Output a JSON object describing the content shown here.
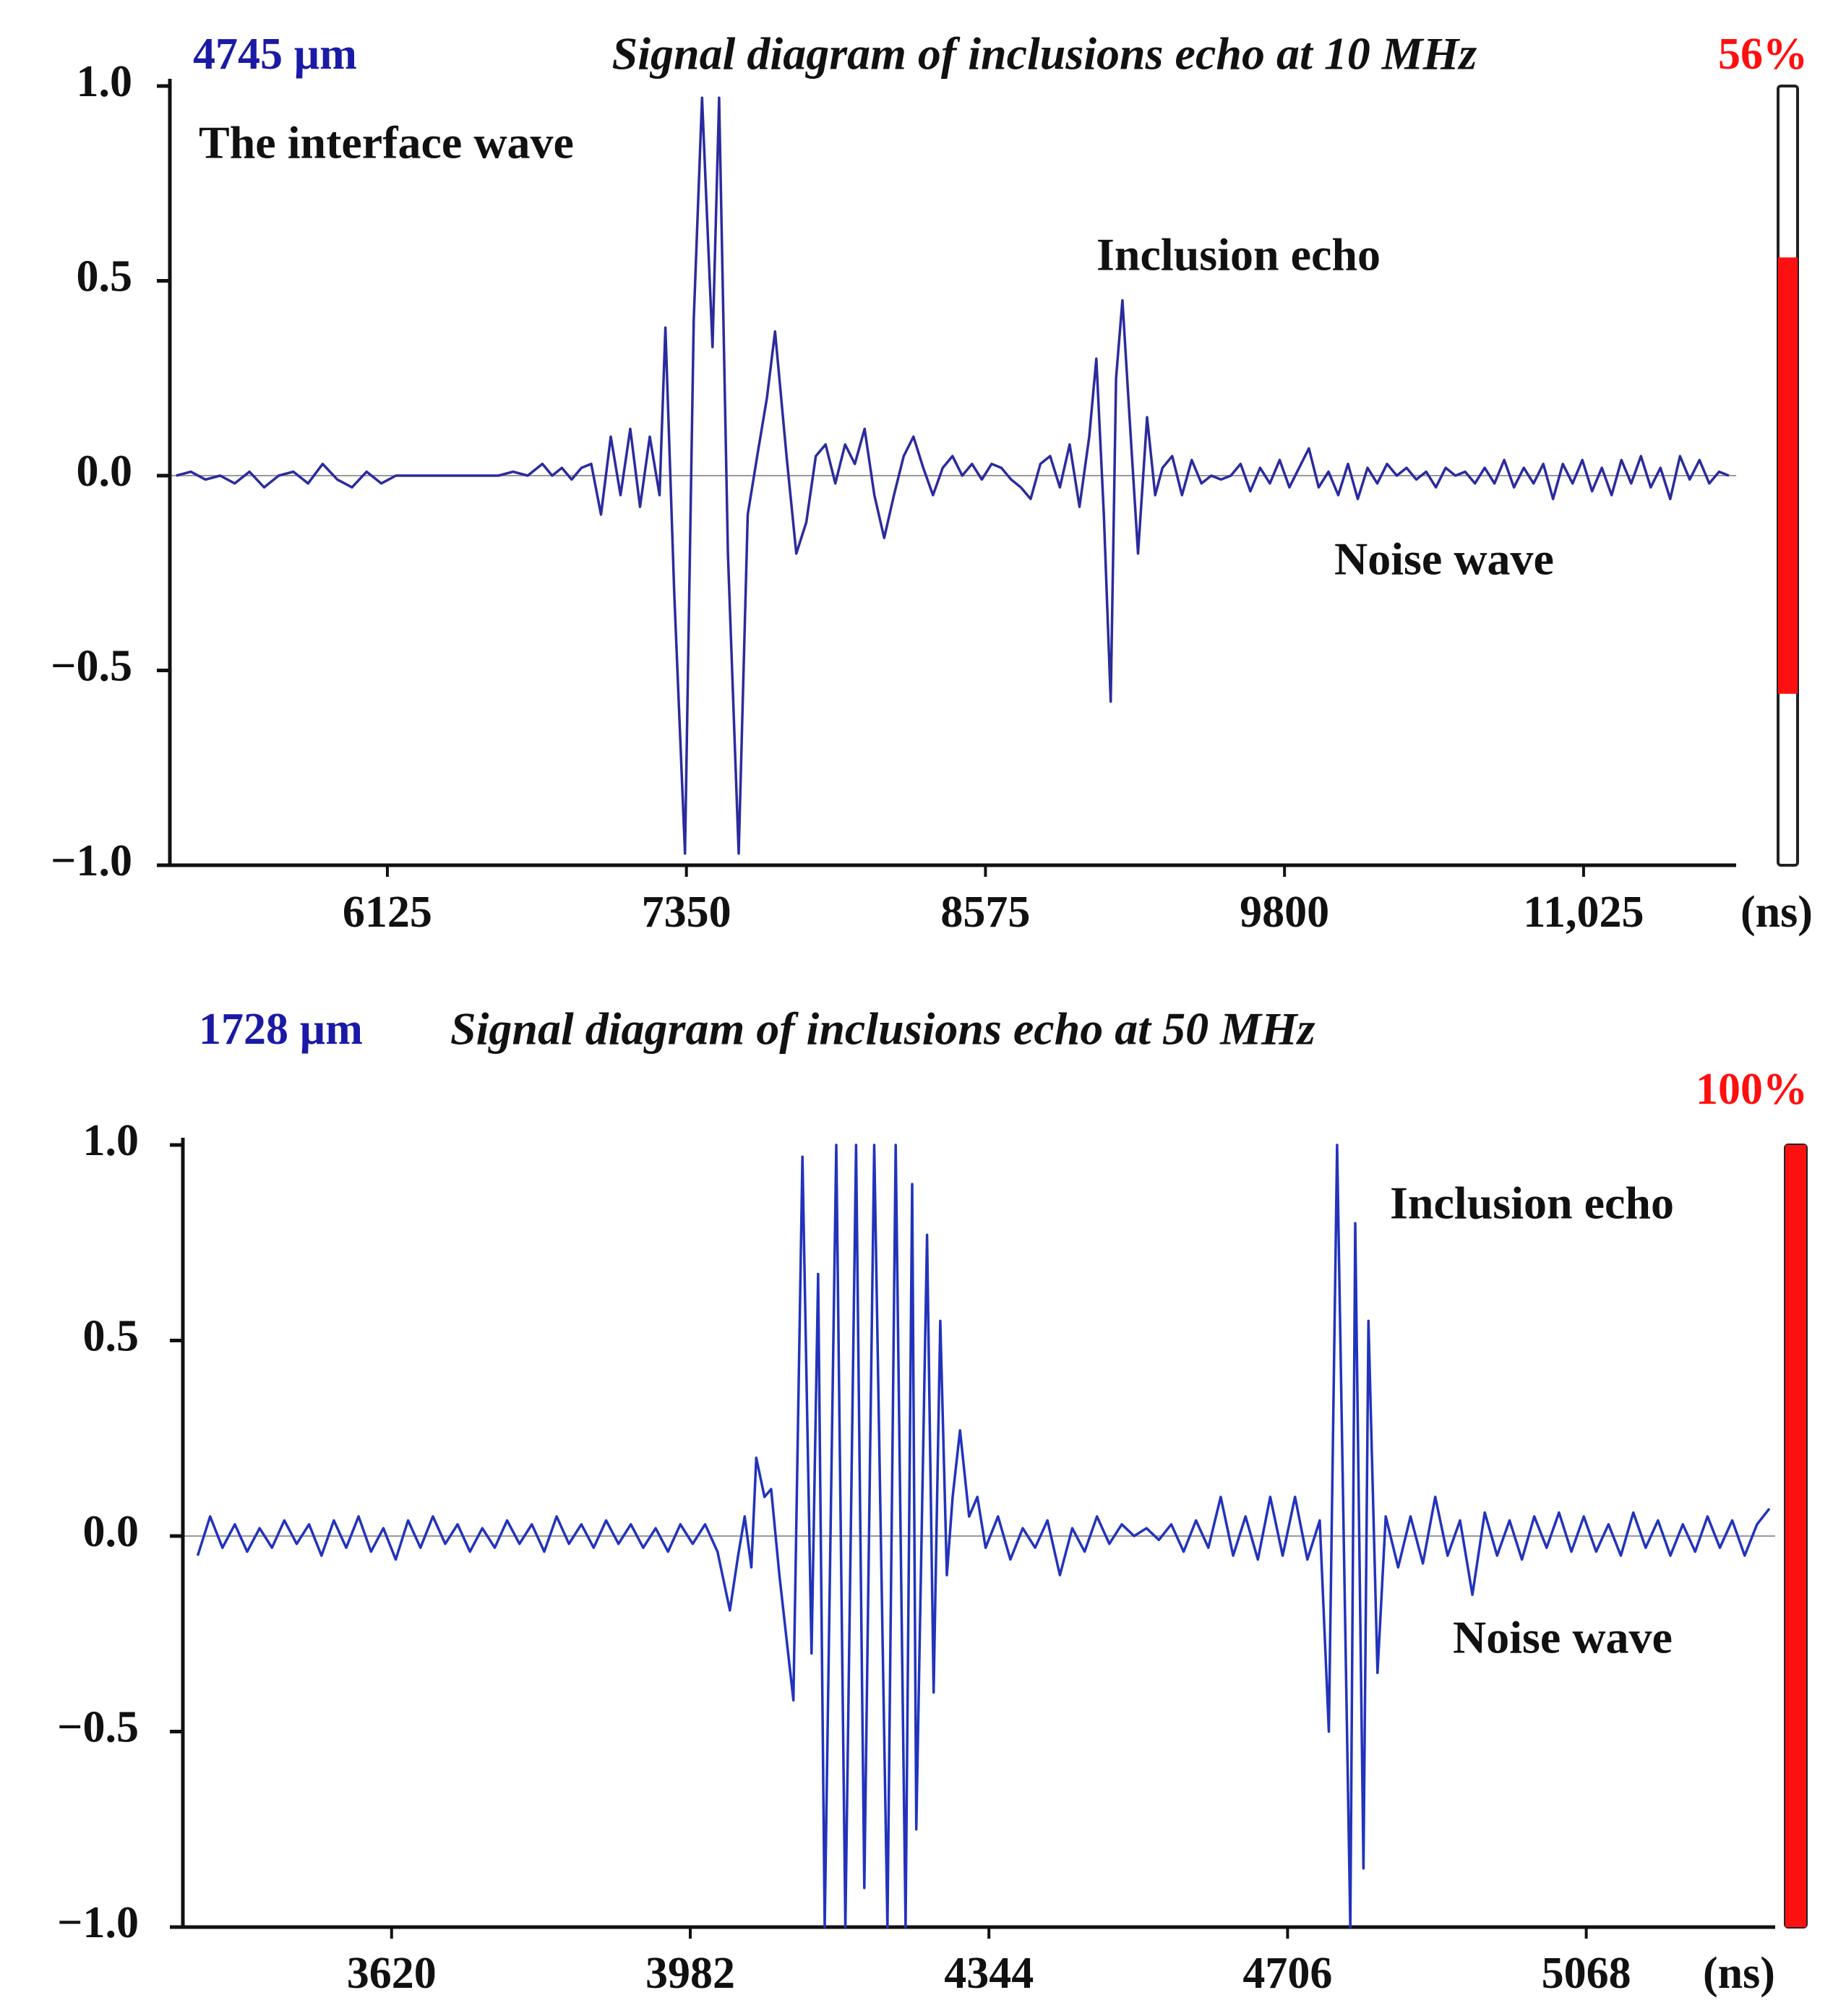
{
  "chart_data": [
    {
      "type": "line",
      "depth_label": "4745 µm",
      "title": "Signal diagram of inclusions echo at 10 MHz",
      "x_unit": "(ns)",
      "color": "#2b2b9e",
      "indicator": {
        "value": 56,
        "label": "56%",
        "color": "#ff1010"
      },
      "annotations": [
        "The interface wave",
        "Inclusion echo",
        "Noise wave"
      ],
      "xlim": [
        5234,
        11650
      ],
      "ylim": [
        -1,
        1
      ],
      "xticks": [
        6125,
        7350,
        8575,
        9800,
        {
          "value": 11025,
          "label": "11,025"
        }
      ],
      "yticks": [
        {
          "value": 1,
          "label": "1.0"
        },
        0.5,
        {
          "value": 0,
          "label": "0.0"
        },
        {
          "value": -0.5,
          "label": "−0.5"
        },
        {
          "value": -1,
          "label": "−1.0"
        }
      ],
      "x": [
        5260,
        5320,
        5380,
        5440,
        5500,
        5560,
        5620,
        5680,
        5740,
        5800,
        5860,
        5920,
        5980,
        6040,
        6100,
        6160,
        6220,
        6280,
        6340,
        6400,
        6460,
        6520,
        6580,
        6640,
        6700,
        6760,
        6800,
        6840,
        6880,
        6920,
        6960,
        7000,
        7040,
        7080,
        7120,
        7160,
        7200,
        7240,
        7264,
        7300,
        7344,
        7380,
        7414,
        7457,
        7484,
        7520,
        7564,
        7601,
        7640,
        7680,
        7713,
        7760,
        7800,
        7841,
        7880,
        7920,
        7960,
        8000,
        8040,
        8080,
        8120,
        8160,
        8200,
        8240,
        8280,
        8320,
        8360,
        8400,
        8440,
        8480,
        8520,
        8560,
        8600,
        8640,
        8680,
        8720,
        8760,
        8800,
        8840,
        8880,
        8920,
        8960,
        9000,
        9029,
        9060,
        9088,
        9110,
        9136,
        9170,
        9200,
        9237,
        9270,
        9300,
        9340,
        9380,
        9420,
        9460,
        9500,
        9540,
        9580,
        9620,
        9660,
        9700,
        9740,
        9780,
        9820,
        9860,
        9900,
        9940,
        9980,
        10020,
        10060,
        10100,
        10140,
        10180,
        10220,
        10260,
        10300,
        10340,
        10380,
        10420,
        10460,
        10500,
        10540,
        10580,
        10620,
        10660,
        10700,
        10740,
        10780,
        10820,
        10860,
        10900,
        10940,
        10980,
        11020,
        11060,
        11100,
        11140,
        11180,
        11220,
        11260,
        11300,
        11340,
        11380,
        11420,
        11460,
        11500,
        11540,
        11580,
        11620
      ],
      "values": [
        0,
        0.01,
        -0.01,
        0,
        -0.02,
        0.01,
        -0.03,
        0,
        0.01,
        -0.02,
        0.03,
        -0.01,
        -0.03,
        0.01,
        -0.02,
        0,
        0,
        0,
        0,
        0,
        0,
        0,
        0,
        0.01,
        0,
        0.03,
        0,
        0.02,
        -0.01,
        0.02,
        0.03,
        -0.1,
        0.1,
        -0.05,
        0.12,
        -0.08,
        0.1,
        -0.05,
        0.38,
        -0.3,
        -0.97,
        0.4,
        0.97,
        0.33,
        0.97,
        -0.2,
        -0.97,
        -0.1,
        0.05,
        0.2,
        0.37,
        0.05,
        -0.2,
        -0.12,
        0.05,
        0.08,
        -0.02,
        0.08,
        0.03,
        0.12,
        -0.05,
        -0.16,
        -0.05,
        0.05,
        0.1,
        0.02,
        -0.05,
        0.02,
        0.05,
        0,
        0.03,
        -0.01,
        0.03,
        0.02,
        -0.01,
        -0.03,
        -0.06,
        0.03,
        0.05,
        -0.03,
        0.08,
        -0.08,
        0.1,
        0.3,
        -0.1,
        -0.58,
        0.25,
        0.45,
        0.1,
        -0.2,
        0.15,
        -0.05,
        0.02,
        0.05,
        -0.05,
        0.04,
        -0.02,
        0,
        -0.01,
        0,
        0.03,
        -0.04,
        0.02,
        -0.02,
        0.04,
        -0.03,
        0.02,
        0.07,
        -0.03,
        0.01,
        -0.05,
        0.03,
        -0.06,
        0.02,
        -0.02,
        0.03,
        0,
        0.02,
        -0.01,
        0.01,
        -0.03,
        0.02,
        0,
        0.01,
        -0.02,
        0.02,
        -0.02,
        0.04,
        -0.03,
        0.02,
        -0.02,
        0.03,
        -0.06,
        0.03,
        -0.02,
        0.04,
        -0.04,
        0.02,
        -0.05,
        0.04,
        -0.02,
        0.05,
        -0.03,
        0.02,
        -0.06,
        0.05,
        -0.01,
        0.04,
        -0.02,
        0.01,
        0
      ]
    },
    {
      "type": "line",
      "depth_label": "1728 µm",
      "title": "Signal diagram of inclusions echo at 50 MHz",
      "x_unit": "(ns)",
      "color": "#2233bb",
      "indicator": {
        "value": 100,
        "label": "100%",
        "color": "#ff1010"
      },
      "annotations": [
        "Inclusion echo",
        "Noise wave"
      ],
      "xlim": [
        3367,
        5297
      ],
      "ylim": [
        -1,
        1
      ],
      "xticks": [
        3620,
        3982,
        4344,
        4706,
        5068
      ],
      "yticks": [
        {
          "value": 1,
          "label": "1.0"
        },
        0.5,
        {
          "value": 0,
          "label": "0.0"
        },
        {
          "value": -0.5,
          "label": "−0.5"
        },
        {
          "value": -1,
          "label": "−1.0"
        }
      ],
      "x": [
        3385,
        3400,
        3415,
        3430,
        3445,
        3460,
        3475,
        3490,
        3505,
        3520,
        3535,
        3550,
        3565,
        3580,
        3595,
        3610,
        3625,
        3640,
        3655,
        3670,
        3685,
        3700,
        3715,
        3730,
        3745,
        3760,
        3775,
        3790,
        3805,
        3820,
        3835,
        3850,
        3865,
        3880,
        3895,
        3910,
        3925,
        3940,
        3955,
        3970,
        3985,
        4000,
        4015,
        4030,
        4040,
        4048,
        4056,
        4062,
        4072,
        4080,
        4090,
        4107,
        4118,
        4129,
        4137,
        4145,
        4159,
        4170,
        4183,
        4193,
        4205,
        4221,
        4231,
        4243,
        4251,
        4256,
        4269,
        4277,
        4285,
        4293,
        4300,
        4309,
        4320,
        4330,
        4340,
        4355,
        4370,
        4385,
        4400,
        4415,
        4430,
        4445,
        4460,
        4475,
        4490,
        4505,
        4520,
        4535,
        4550,
        4565,
        4580,
        4595,
        4610,
        4625,
        4640,
        4655,
        4670,
        4685,
        4700,
        4715,
        4730,
        4745,
        4756,
        4766,
        4782,
        4788,
        4798,
        4804,
        4815,
        4825,
        4840,
        4855,
        4870,
        4885,
        4900,
        4915,
        4930,
        4945,
        4960,
        4975,
        4990,
        5005,
        5020,
        5035,
        5050,
        5065,
        5080,
        5095,
        5110,
        5125,
        5140,
        5155,
        5170,
        5185,
        5200,
        5215,
        5230,
        5245,
        5260,
        5275,
        5290
      ],
      "values": [
        -0.05,
        0.05,
        -0.03,
        0.03,
        -0.04,
        0.02,
        -0.03,
        0.04,
        -0.02,
        0.03,
        -0.05,
        0.04,
        -0.03,
        0.05,
        -0.04,
        0.02,
        -0.06,
        0.04,
        -0.03,
        0.05,
        -0.02,
        0.03,
        -0.04,
        0.02,
        -0.03,
        0.04,
        -0.02,
        0.03,
        -0.04,
        0.05,
        -0.02,
        0.03,
        -0.03,
        0.04,
        -0.02,
        0.03,
        -0.03,
        0.02,
        -0.04,
        0.03,
        -0.02,
        0.03,
        -0.04,
        -0.19,
        -0.05,
        0.05,
        -0.08,
        0.2,
        0.1,
        0.12,
        -0.1,
        -0.42,
        0.97,
        -0.3,
        0.67,
        -1,
        1,
        -1,
        1,
        -0.9,
        1,
        -1,
        1,
        -1,
        0.9,
        -0.75,
        0.77,
        -0.4,
        0.55,
        -0.1,
        0.1,
        0.27,
        0.05,
        0.1,
        -0.03,
        0.05,
        -0.06,
        0.02,
        -0.03,
        0.04,
        -0.1,
        0.02,
        -0.04,
        0.05,
        -0.02,
        0.03,
        0,
        0.02,
        -0.01,
        0.03,
        -0.04,
        0.04,
        -0.03,
        0.1,
        -0.05,
        0.05,
        -0.06,
        0.1,
        -0.05,
        0.1,
        -0.06,
        0.04,
        -0.5,
        1,
        -1,
        0.8,
        -0.85,
        0.55,
        -0.35,
        0.05,
        -0.08,
        0.05,
        -0.07,
        0.1,
        -0.05,
        0.04,
        -0.15,
        0.06,
        -0.05,
        0.04,
        -0.06,
        0.05,
        -0.03,
        0.06,
        -0.04,
        0.05,
        -0.04,
        0.03,
        -0.05,
        0.06,
        -0.03,
        0.04,
        -0.05,
        0.03,
        -0.04,
        0.05,
        -0.03,
        0.04,
        -0.05,
        0.03,
        0.07
      ]
    }
  ]
}
